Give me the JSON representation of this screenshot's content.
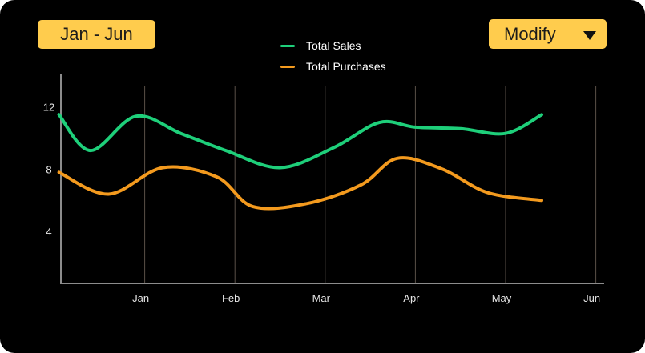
{
  "range_label": "Jan - Jun",
  "modify_label": "Modify",
  "colors": {
    "background": "#000000",
    "accent": "#ffcc4d",
    "total_sales": "#1ecf7a",
    "total_purchases": "#f39a1e",
    "axis": "#8c8c8c",
    "grid": "#5a5048"
  },
  "chart_data": {
    "type": "line",
    "title": "",
    "xlabel": "",
    "ylabel": "",
    "categories": [
      "Jan",
      "Feb",
      "Mar",
      "Apr",
      "May",
      "Jun"
    ],
    "y_ticks": [
      "4",
      "8",
      "12"
    ],
    "ylim": [
      0,
      14.4
    ],
    "grid": "vertical",
    "legend_position": "top-center",
    "series": [
      {
        "name": "Total Sales",
        "x": [
          0.05,
          0.4,
          0.9,
          1.4,
          1.9,
          2.5,
          3.1,
          3.6,
          4.0,
          4.5,
          5.0,
          5.4
        ],
        "values": [
          11.5,
          9.2,
          11.4,
          10.3,
          9.2,
          8.1,
          9.4,
          11.0,
          10.7,
          10.6,
          10.3,
          11.5
        ]
      },
      {
        "name": "Total Purchases",
        "x": [
          0.05,
          0.6,
          1.2,
          1.8,
          2.2,
          2.8,
          3.4,
          3.8,
          4.3,
          4.8,
          5.4
        ],
        "values": [
          7.8,
          6.4,
          8.1,
          7.5,
          5.6,
          5.8,
          7.0,
          8.7,
          8.0,
          6.5,
          6.0
        ]
      }
    ]
  }
}
